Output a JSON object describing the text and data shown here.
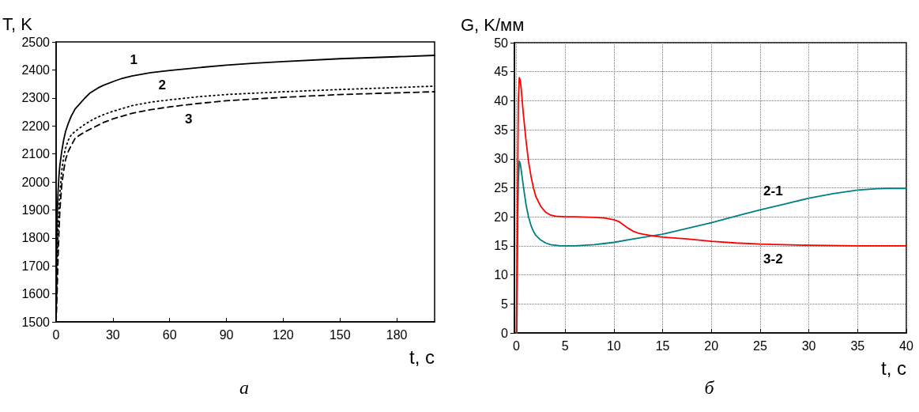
{
  "chart_data": [
    {
      "type": "line",
      "xlabel": "t, с",
      "ylabel": "T, K",
      "xlim": [
        0,
        200
      ],
      "ylim": [
        1500,
        2500
      ],
      "xticks": [
        0,
        30,
        60,
        90,
        120,
        150,
        180
      ],
      "yticks": [
        1500,
        1600,
        1700,
        1800,
        1900,
        2000,
        2100,
        2200,
        2300,
        2400,
        2500
      ],
      "grid": false,
      "marker": "none",
      "series": [
        {
          "name": "1",
          "color": "#000000",
          "line_style": "solid",
          "x": [
            0,
            0.3,
            0.6,
            1,
            1.5,
            2,
            3,
            4,
            5,
            6.5,
            8,
            10,
            12,
            15,
            18,
            22,
            25,
            30,
            35,
            40,
            50,
            60,
            75,
            90,
            105,
            120,
            150,
            180,
            200
          ],
          "values": [
            1500,
            1750,
            1880,
            1960,
            2020,
            2060,
            2110,
            2150,
            2180,
            2210,
            2235,
            2260,
            2275,
            2298,
            2318,
            2335,
            2345,
            2358,
            2370,
            2378,
            2390,
            2398,
            2408,
            2417,
            2424,
            2430,
            2440,
            2447,
            2452
          ]
        },
        {
          "name": "2",
          "color": "#000000",
          "line_style": "dotted",
          "x": [
            0,
            0.5,
            1,
            1.5,
            2,
            3,
            4,
            5,
            6.5,
            8,
            10,
            12,
            15,
            20,
            25,
            30,
            40,
            50,
            60,
            75,
            90,
            120,
            150,
            180,
            200
          ],
          "values": [
            1500,
            1700,
            1820,
            1900,
            1960,
            2040,
            2090,
            2120,
            2150,
            2168,
            2180,
            2190,
            2205,
            2225,
            2240,
            2252,
            2272,
            2285,
            2293,
            2304,
            2312,
            2322,
            2330,
            2337,
            2342
          ]
        },
        {
          "name": "3",
          "color": "#000000",
          "line_style": "dashed",
          "x": [
            0,
            0.5,
            1,
            1.5,
            2,
            3,
            4,
            5,
            6.5,
            8,
            10,
            12,
            15,
            20,
            25,
            30,
            40,
            50,
            60,
            75,
            90,
            120,
            150,
            180,
            200
          ],
          "values": [
            1500,
            1600,
            1720,
            1820,
            1900,
            1990,
            2040,
            2080,
            2110,
            2130,
            2155,
            2165,
            2178,
            2195,
            2212,
            2225,
            2245,
            2258,
            2268,
            2280,
            2290,
            2302,
            2312,
            2318,
            2322
          ]
        }
      ],
      "annotations": [
        "а"
      ]
    },
    {
      "type": "line",
      "xlabel": "t, с",
      "ylabel": "G, K/мм",
      "xlim": [
        -0.2,
        40
      ],
      "ylim": [
        0,
        50
      ],
      "xticks": [
        0,
        5,
        10,
        15,
        20,
        25,
        30,
        35,
        40
      ],
      "yticks": [
        0,
        5,
        10,
        15,
        20,
        25,
        30,
        35,
        40,
        45,
        50
      ],
      "grid": true,
      "marker": "none",
      "series": [
        {
          "name": "2-1",
          "color": "#008080",
          "line_style": "solid",
          "x": [
            0.05,
            0.1,
            0.15,
            0.2,
            0.3,
            0.4,
            0.5,
            0.7,
            1,
            1.25,
            1.5,
            1.75,
            2,
            2.5,
            3,
            3.5,
            4,
            4.5,
            5,
            6,
            7,
            8,
            10,
            12,
            15,
            17.5,
            20,
            22.5,
            25,
            27.5,
            30,
            32.5,
            35,
            37,
            38,
            40
          ],
          "values": [
            0,
            10,
            20,
            26,
            29.6,
            29.2,
            28,
            25.5,
            22,
            20,
            18.5,
            17.5,
            16.8,
            16,
            15.5,
            15.2,
            15.1,
            15,
            15,
            15,
            15.1,
            15.2,
            15.6,
            16.2,
            17,
            18,
            19,
            20.1,
            21.2,
            22.2,
            23.2,
            24,
            24.6,
            24.85,
            24.9,
            24.9
          ]
        },
        {
          "name": "3-2",
          "color": "#ff0000",
          "line_style": "solid",
          "x": [
            0,
            0.1,
            0.2,
            0.3,
            0.4,
            0.5,
            0.7,
            1,
            1.25,
            1.5,
            1.75,
            2,
            2.5,
            3,
            3.5,
            4,
            5,
            6,
            8,
            9,
            10,
            10.5,
            11,
            11.5,
            12,
            12.5,
            13,
            14,
            15,
            17.5,
            20,
            22.5,
            25,
            30,
            35,
            40
          ],
          "values": [
            0,
            20,
            40,
            44,
            43.5,
            42,
            38,
            33,
            29.5,
            27,
            25,
            23.5,
            21.8,
            20.8,
            20.3,
            20.1,
            20,
            20,
            19.9,
            19.8,
            19.5,
            19.2,
            18.6,
            18,
            17.5,
            17.2,
            17,
            16.7,
            16.5,
            16.2,
            15.8,
            15.5,
            15.3,
            15.1,
            15,
            15
          ]
        }
      ],
      "annotations": [
        "б"
      ]
    }
  ]
}
